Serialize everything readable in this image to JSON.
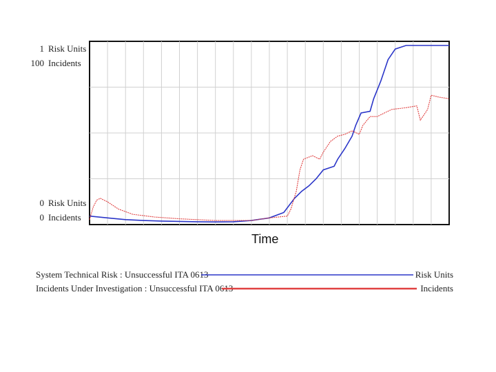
{
  "chart_data": {
    "type": "line",
    "xlabel": "Time",
    "axes": {
      "risk": {
        "unit": "Risk Units",
        "min": 0,
        "max": 1,
        "min_label": "0",
        "max_label": "1"
      },
      "incidents": {
        "unit": "Incidents",
        "min": 0,
        "max": 100,
        "min_label": "0",
        "max_label": "100"
      }
    },
    "x_range": [
      0,
      100
    ],
    "grid": true,
    "legend_position": "bottom",
    "series": [
      {
        "name": "System Technical Risk : Unsuccessful ITA 0613",
        "unit": "Risk Units",
        "color": "#2a35c8",
        "points": [
          [
            0,
            0.04
          ],
          [
            5,
            0.03
          ],
          [
            10,
            0.02
          ],
          [
            15,
            0.015
          ],
          [
            20,
            0.012
          ],
          [
            25,
            0.01
          ],
          [
            30,
            0.008
          ],
          [
            35,
            0.007
          ],
          [
            40,
            0.008
          ],
          [
            45,
            0.015
          ],
          [
            50,
            0.03
          ],
          [
            54,
            0.06
          ],
          [
            57,
            0.14
          ],
          [
            59,
            0.18
          ],
          [
            61,
            0.21
          ],
          [
            63,
            0.25
          ],
          [
            65,
            0.3
          ],
          [
            68,
            0.32
          ],
          [
            69,
            0.36
          ],
          [
            71,
            0.42
          ],
          [
            73,
            0.49
          ],
          [
            74,
            0.55
          ],
          [
            75.5,
            0.62
          ],
          [
            78,
            0.63
          ],
          [
            79,
            0.7
          ],
          [
            81,
            0.8
          ],
          [
            83,
            0.92
          ],
          [
            85,
            0.98
          ],
          [
            88,
            1.0
          ],
          [
            100,
            1.0
          ]
        ]
      },
      {
        "name": "Incidents Under Investigation : Unsuccessful ITA 0613",
        "unit": "Incidents",
        "color": "#e04040",
        "points": [
          [
            0,
            2
          ],
          [
            1,
            9
          ],
          [
            2,
            13
          ],
          [
            3,
            14
          ],
          [
            5,
            12
          ],
          [
            8,
            8
          ],
          [
            12,
            5
          ],
          [
            18,
            3.5
          ],
          [
            25,
            2.5
          ],
          [
            35,
            1.5
          ],
          [
            45,
            1.5
          ],
          [
            50,
            3
          ],
          [
            55,
            4
          ],
          [
            56,
            8
          ],
          [
            57.5,
            18
          ],
          [
            58.5,
            30
          ],
          [
            59.5,
            36
          ],
          [
            62,
            38
          ],
          [
            64,
            36
          ],
          [
            65,
            40
          ],
          [
            67,
            46
          ],
          [
            69,
            49
          ],
          [
            71,
            50
          ],
          [
            73,
            52
          ],
          [
            75,
            50
          ],
          [
            76,
            55
          ],
          [
            78,
            60
          ],
          [
            80,
            60
          ],
          [
            82,
            62
          ],
          [
            84,
            64
          ],
          [
            88,
            65
          ],
          [
            91,
            66
          ],
          [
            92,
            58
          ],
          [
            94,
            64
          ],
          [
            95,
            72
          ],
          [
            97,
            71
          ],
          [
            100,
            70
          ]
        ]
      }
    ]
  }
}
